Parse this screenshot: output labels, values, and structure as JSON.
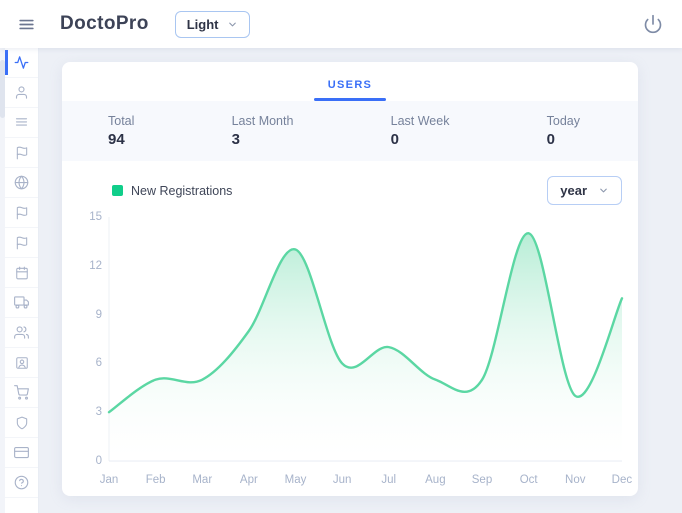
{
  "topbar": {
    "title": "DoctoPro",
    "theme_select_value": "Light"
  },
  "tab": {
    "label": "USERS"
  },
  "stats": [
    {
      "label": "Total",
      "value": "94"
    },
    {
      "label": "Last Month",
      "value": "3"
    },
    {
      "label": "Last Week",
      "value": "0"
    },
    {
      "label": "Today",
      "value": "0"
    }
  ],
  "legend": {
    "label": "New Registrations",
    "color": "#10ce8a"
  },
  "range_select_value": "year",
  "colors": {
    "accent_blue": "#3a6ff7",
    "green": "#10ce8a"
  },
  "sidebar": {
    "active_index": 0,
    "icons": [
      "activity-icon",
      "user-icon",
      "list-icon",
      "flag-icon",
      "globe-icon",
      "flag-icon",
      "flag-icon",
      "calendar-icon",
      "truck-icon",
      "users-icon",
      "user-badge-icon",
      "cart-icon",
      "shield-icon",
      "credit-card-icon",
      "help-icon"
    ]
  },
  "chart_data": {
    "type": "area",
    "title": "",
    "x": [
      "Jan",
      "Feb",
      "Mar",
      "Apr",
      "May",
      "Jun",
      "Jul",
      "Aug",
      "Sep",
      "Oct",
      "Nov",
      "Dec"
    ],
    "series": [
      {
        "name": "New Registrations",
        "values": [
          3,
          5,
          5,
          8,
          13,
          6,
          7,
          5,
          5,
          14,
          4,
          10
        ]
      }
    ],
    "xlabel": "",
    "ylabel": "",
    "ylim": [
      0,
      15
    ],
    "yticks": [
      0,
      3,
      6,
      9,
      12,
      15
    ],
    "grid": false,
    "legend_position": "top-left",
    "line_color": "#5bd7a3",
    "fill_gradient": [
      "#9fe7c8",
      "#ffffff"
    ]
  }
}
